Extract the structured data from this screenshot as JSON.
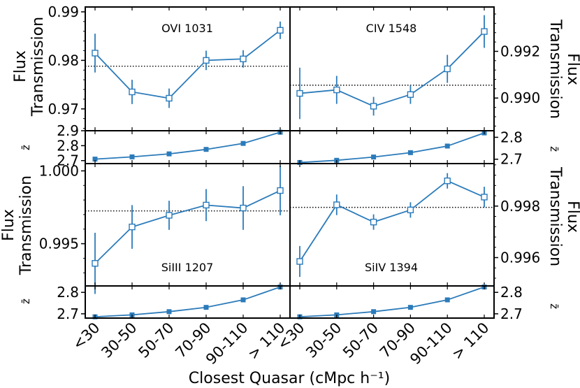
{
  "figure": {
    "xlabel": "Closest Quasar (cMpc h⁻¹)",
    "categories": [
      "<30",
      "30-50",
      "50-70",
      "70-90",
      "90-110",
      "> 110"
    ],
    "colors": {
      "series": "#2b7bba",
      "frame": "#000000"
    }
  },
  "chart_data": [
    {
      "type": "line",
      "id": "ovi",
      "title": "OVI 1031",
      "ylabel": [
        "Flux",
        "Transmission"
      ],
      "ylim": [
        0.9655,
        0.991
      ],
      "yticks": [
        0.97,
        0.98,
        0.99
      ],
      "ytick_labels": [
        "0.97",
        "0.98",
        "0.99"
      ],
      "values": [
        0.9815,
        0.9735,
        0.9722,
        0.98,
        0.9803,
        0.9862
      ],
      "errors": [
        0.004,
        0.0025,
        0.002,
        0.002,
        0.0018,
        0.0018
      ],
      "mean_line": 0.9788
    },
    {
      "type": "line",
      "id": "civ",
      "title": "CIV 1548",
      "ylabel": [
        "Flux",
        "Transmission"
      ],
      "ylim": [
        0.9886,
        0.9939
      ],
      "yticks": [
        0.99,
        0.992
      ],
      "ytick_labels": [
        "0.990",
        "0.992"
      ],
      "values": [
        0.9902,
        0.99035,
        0.98965,
        0.99015,
        0.99125,
        0.99285
      ],
      "errors": [
        0.0011,
        0.0006,
        0.0004,
        0.0004,
        0.0006,
        0.0007
      ],
      "mean_line": 0.99055
    },
    {
      "type": "line",
      "id": "siiii",
      "title": "SiIII 1207",
      "ylabel": [
        "Flux",
        "Transmission"
      ],
      "ylim": [
        0.9921,
        1.0005
      ],
      "yticks": [
        0.995,
        1.0
      ],
      "ytick_labels": [
        "0.995",
        "1.000"
      ],
      "values": [
        0.99365,
        0.99615,
        0.99695,
        0.99765,
        0.99745,
        0.99865
      ],
      "errors": [
        0.0021,
        0.0015,
        0.001,
        0.0011,
        0.0015,
        0.0017
      ],
      "mean_line": 0.99725
    },
    {
      "type": "line",
      "id": "siiv",
      "title": "SiIV 1394",
      "ylabel": [
        "Flux",
        "Transmission"
      ],
      "ylim": [
        0.9949,
        0.99965
      ],
      "yticks": [
        0.996,
        0.998
      ],
      "ytick_labels": [
        "0.996",
        "0.998"
      ],
      "values": [
        0.99585,
        0.99805,
        0.99738,
        0.99785,
        0.99898,
        0.99835
      ],
      "errors": [
        0.0006,
        0.0004,
        0.0003,
        0.0003,
        0.0003,
        0.0004
      ],
      "mean_line": 0.99795
    },
    {
      "type": "line",
      "id": "z_ovi",
      "ylabel": "z̄",
      "ylim": [
        2.68,
        2.9
      ],
      "yticks": [
        2.7,
        2.8,
        2.9
      ],
      "ytick_labels": [
        "2.7",
        "2.8",
        "2.9"
      ],
      "values": [
        2.71,
        2.725,
        2.745,
        2.775,
        2.815,
        2.89
      ]
    },
    {
      "type": "line",
      "id": "z_civ",
      "ylabel": "z̄",
      "ylim": [
        2.68,
        2.83
      ],
      "yticks": [
        2.7,
        2.8
      ],
      "ytick_labels": [
        "2.7",
        "2.8"
      ],
      "values": [
        2.685,
        2.695,
        2.71,
        2.73,
        2.76,
        2.82
      ]
    },
    {
      "type": "line",
      "id": "z_siiii",
      "ylabel": "z̄",
      "ylim": [
        2.68,
        2.83
      ],
      "yticks": [
        2.7,
        2.8
      ],
      "ytick_labels": [
        "2.7",
        "2.8"
      ],
      "values": [
        2.686,
        2.695,
        2.71,
        2.73,
        2.765,
        2.825
      ]
    },
    {
      "type": "line",
      "id": "z_siiv",
      "ylabel": "z̄",
      "ylim": [
        2.68,
        2.83
      ],
      "yticks": [
        2.7,
        2.8
      ],
      "ytick_labels": [
        "2.7",
        "2.8"
      ],
      "values": [
        2.686,
        2.695,
        2.71,
        2.73,
        2.765,
        2.825
      ]
    }
  ]
}
